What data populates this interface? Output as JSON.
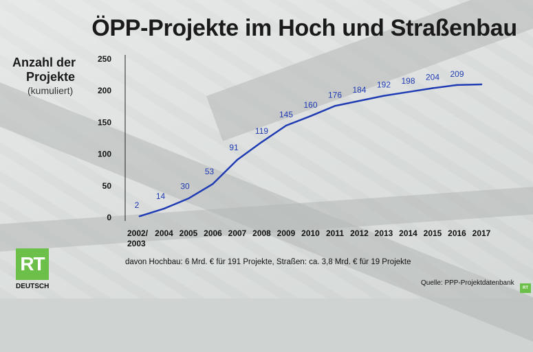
{
  "title": "ÖPP-Projekte im Hoch und Straßenbau",
  "ylabel": {
    "line1": "Anzahl der",
    "line2": "Projekte",
    "line3": "(kumuliert)"
  },
  "note": "davon Hochbau: 6 Mrd. € für 191 Projekte, Straßen: ca. 3,8 Mrd. € für 19 Projekte",
  "source": "Quelle: PPP-Projektdatenbank",
  "logo": {
    "mark": "RT",
    "name": "DEUTSCH",
    "color": "#6cc04a"
  },
  "corner_logo": "RT",
  "colors": {
    "line": "#1f3bb3",
    "label": "#1f3bb3"
  },
  "chart_data": {
    "type": "line",
    "categories": [
      "2002/ 2003",
      "2004",
      "2005",
      "2006",
      "2007",
      "2008",
      "2009",
      "2010",
      "2011",
      "2012",
      "2013",
      "2014",
      "2015",
      "2016",
      "2017"
    ],
    "series": [
      {
        "values": [
          2,
          14,
          30,
          53,
          91,
          119,
          145,
          160,
          176,
          184,
          192,
          198,
          204,
          209,
          210
        ]
      }
    ],
    "data_labels": [
      "2",
      "14",
      "30",
      "53",
      "91",
      "119",
      "145",
      "160",
      "176",
      "184",
      "192",
      "198",
      "204",
      "209",
      ""
    ],
    "yticks": [
      0,
      50,
      100,
      150,
      200,
      250
    ],
    "ylim": [
      0,
      250
    ],
    "grid": false
  }
}
